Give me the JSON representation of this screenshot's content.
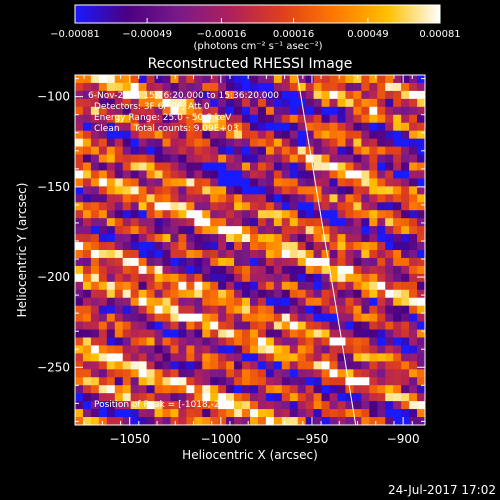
{
  "chart_data": {
    "type": "heatmap",
    "title": "Reconstructed RHESSI Image",
    "xlabel": "Heliocentric X (arcsec)",
    "ylabel": "Heliocentric Y (arcsec)",
    "xlim": [
      -1080,
      -888
    ],
    "ylim": [
      -282,
      -88
    ],
    "x_ticks": [
      -1050,
      -1000,
      -950,
      -900
    ],
    "x_tick_labels": [
      "−1050",
      "−1000",
      "−950",
      "−900"
    ],
    "y_ticks": [
      -100,
      -150,
      -200,
      -250
    ],
    "y_tick_labels": [
      "−100",
      "−150",
      "−200",
      "−250"
    ],
    "colorbar": {
      "range": [
        -0.00081,
        0.00081
      ],
      "tick_values": [
        -0.00081,
        -0.00049,
        -0.00016,
        0.00016,
        0.00049,
        0.00081
      ],
      "tick_labels": [
        "−0.00081",
        "−0.00049",
        "−0.00016",
        "0.00016",
        "0.00049",
        "0.00081"
      ],
      "units": "(photons cm⁻² s⁻¹ asec⁻²)",
      "colors": [
        "#1a1aff",
        "#4b0082",
        "#7a1a8a",
        "#b0205a",
        "#e0401a",
        "#ff7a00",
        "#ffc000",
        "#ffffff"
      ]
    },
    "annotations": {
      "time_range": "6-Nov-2014 15:26:20.000 to 15:36:20.000",
      "detectors": "Detectors: 3F 6F 9F, Att 0",
      "energy": "Energy Range: 25.0 - 50.0 keV",
      "clean": "Clean     Total counts: 9.09E+03",
      "peak": "Position of Peak = [-1018,-245]"
    },
    "limb_line": [
      [
        -958,
        -88
      ],
      [
        -926,
        -282
      ]
    ],
    "grid": false
  },
  "footer": {
    "timestamp": "24-Jul-2017 17:02"
  }
}
